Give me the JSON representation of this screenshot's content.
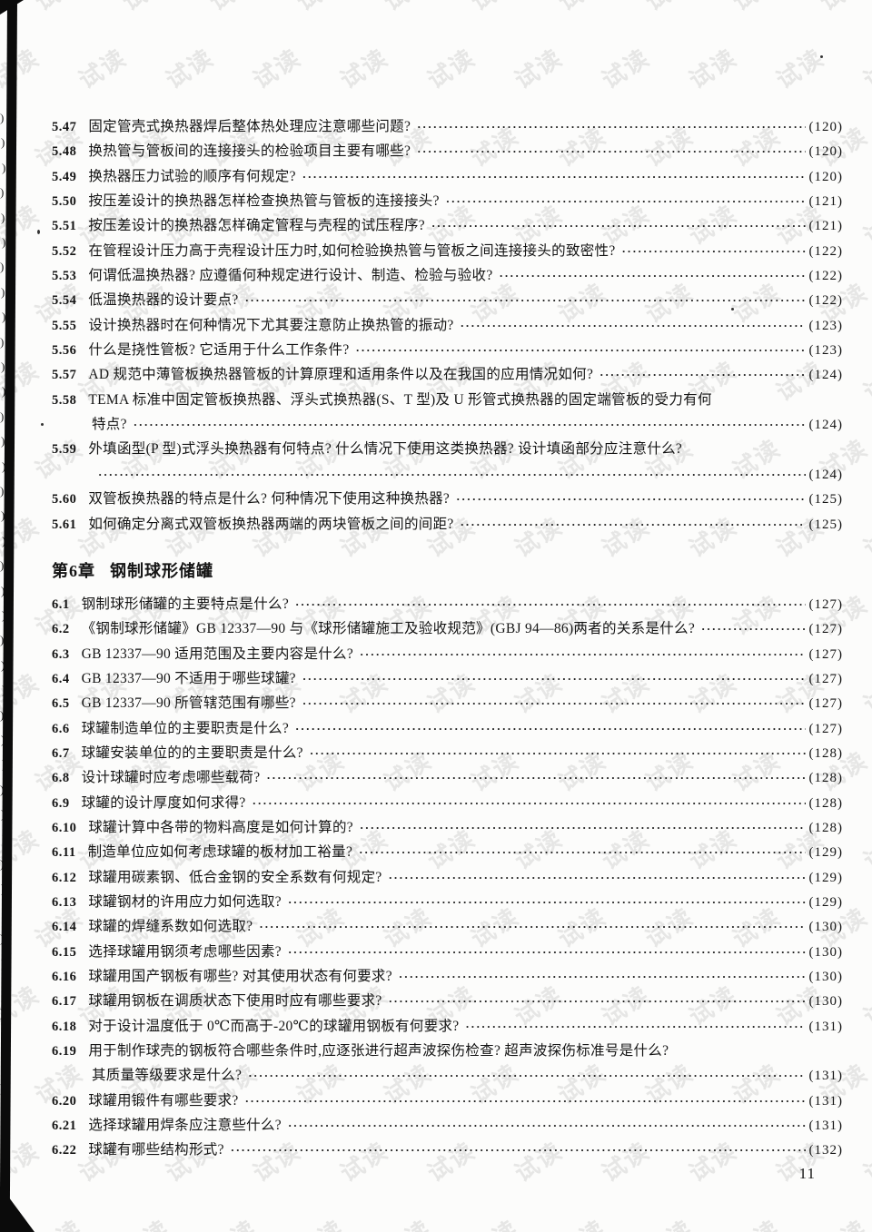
{
  "page": {
    "page_number": "11",
    "watermark_text": "试读",
    "margin_glyph": ")"
  },
  "toc": {
    "sections": [
      {
        "heading": null,
        "entries": [
          {
            "num": "5.47",
            "lines": [
              "固定管壳式换热器焊后整体热处理应注意哪些问题?"
            ],
            "page": "(120)"
          },
          {
            "num": "5.48",
            "lines": [
              "换热管与管板间的连接接头的检验项目主要有哪些?"
            ],
            "page": "(120)"
          },
          {
            "num": "5.49",
            "lines": [
              "换热器压力试验的顺序有何规定?"
            ],
            "page": "(120)"
          },
          {
            "num": "5.50",
            "lines": [
              "按压差设计的换热器怎样检查换热管与管板的连接接头?"
            ],
            "page": "(121)"
          },
          {
            "num": "5.51",
            "lines": [
              "按压差设计的换热器怎样确定管程与壳程的试压程序?"
            ],
            "page": "(121)"
          },
          {
            "num": "5.52",
            "lines": [
              "在管程设计压力高于壳程设计压力时,如何检验换热管与管板之间连接接头的致密性?"
            ],
            "page": "(122)"
          },
          {
            "num": "5.53",
            "lines": [
              "何谓低温换热器? 应遵循何种规定进行设计、制造、检验与验收?"
            ],
            "page": "(122)"
          },
          {
            "num": "5.54",
            "lines": [
              "低温换热器的设计要点?"
            ],
            "page": "(122)"
          },
          {
            "num": "5.55",
            "lines": [
              "设计换热器时在何种情况下尤其要注意防止换热管的振动?"
            ],
            "page": "(123)"
          },
          {
            "num": "5.56",
            "lines": [
              "什么是挠性管板? 它适用于什么工作条件?"
            ],
            "page": "(123)"
          },
          {
            "num": "5.57",
            "lines": [
              "AD 规范中薄管板换热器管板的计算原理和适用条件以及在我国的应用情况如何?"
            ],
            "page": "(124)"
          },
          {
            "num": "5.58",
            "lines": [
              "TEMA 标准中固定管板换热器、浮头式换热器(S、T 型)及 U 形管式换热器的固定端管板的受力有何",
              "特点?"
            ],
            "page": "(124)"
          },
          {
            "num": "5.59",
            "lines": [
              "外填函型(P 型)式浮头换热器有何特点? 什么情况下使用这类换热器? 设计填函部分应注意什么?",
              ""
            ],
            "page": "(124)"
          },
          {
            "num": "5.60",
            "lines": [
              "双管板换热器的特点是什么? 何种情况下使用这种换热器?"
            ],
            "page": "(125)"
          },
          {
            "num": "5.61",
            "lines": [
              "如何确定分离式双管板换热器两端的两块管板之间的间距?"
            ],
            "page": "(125)"
          }
        ]
      },
      {
        "heading": {
          "chapter": "第6章",
          "title": "钢制球形储罐"
        },
        "entries": [
          {
            "num": "6.1",
            "lines": [
              "钢制球形储罐的主要特点是什么?"
            ],
            "page": "(127)"
          },
          {
            "num": "6.2",
            "lines": [
              "《钢制球形储罐》GB 12337—90 与《球形储罐施工及验收规范》(GBJ 94—86)两者的关系是什么?"
            ],
            "page": "(127)"
          },
          {
            "num": "6.3",
            "lines": [
              "GB 12337—90 适用范围及主要内容是什么?"
            ],
            "page": "(127)"
          },
          {
            "num": "6.4",
            "lines": [
              "GB 12337—90 不适用于哪些球罐?"
            ],
            "page": "(127)"
          },
          {
            "num": "6.5",
            "lines": [
              "GB 12337—90 所管辖范围有哪些?"
            ],
            "page": "(127)"
          },
          {
            "num": "6.6",
            "lines": [
              "球罐制造单位的主要职责是什么?"
            ],
            "page": "(127)"
          },
          {
            "num": "6.7",
            "lines": [
              "球罐安装单位的的主要职责是什么?"
            ],
            "page": "(128)"
          },
          {
            "num": "6.8",
            "lines": [
              "设计球罐时应考虑哪些载荷?"
            ],
            "page": "(128)"
          },
          {
            "num": "6.9",
            "lines": [
              "球罐的设计厚度如何求得?"
            ],
            "page": "(128)"
          },
          {
            "num": "6.10",
            "lines": [
              "球罐计算中各带的物料高度是如何计算的?"
            ],
            "page": "(128)"
          },
          {
            "num": "6.11",
            "lines": [
              "制造单位应如何考虑球罐的板材加工裕量?"
            ],
            "page": "(129)"
          },
          {
            "num": "6.12",
            "lines": [
              "球罐用碳素钢、低合金钢的安全系数有何规定?"
            ],
            "page": "(129)"
          },
          {
            "num": "6.13",
            "lines": [
              "球罐钢材的许用应力如何选取?"
            ],
            "page": "(129)"
          },
          {
            "num": "6.14",
            "lines": [
              "球罐的焊缝系数如何选取?"
            ],
            "page": "(130)"
          },
          {
            "num": "6.15",
            "lines": [
              "选择球罐用钢须考虑哪些因素?"
            ],
            "page": "(130)"
          },
          {
            "num": "6.16",
            "lines": [
              "球罐用国产钢板有哪些? 对其使用状态有何要求?"
            ],
            "page": "(130)"
          },
          {
            "num": "6.17",
            "lines": [
              "球罐用钢板在调质状态下使用时应有哪些要求?"
            ],
            "page": "(130)"
          },
          {
            "num": "6.18",
            "lines": [
              "对于设计温度低于 0℃而高于-20℃的球罐用钢板有何要求?"
            ],
            "page": "(131)"
          },
          {
            "num": "6.19",
            "lines": [
              "用于制作球壳的钢板符合哪些条件时,应逐张进行超声波探伤检查? 超声波探伤标准号是什么?",
              "其质量等级要求是什么?"
            ],
            "page": "(131)"
          },
          {
            "num": "6.20",
            "lines": [
              "球罐用锻件有哪些要求?"
            ],
            "page": "(131)"
          },
          {
            "num": "6.21",
            "lines": [
              "选择球罐用焊条应注意些什么?"
            ],
            "page": "(131)"
          },
          {
            "num": "6.22",
            "lines": [
              "球罐有哪些结构形式?"
            ],
            "page": "(132)"
          }
        ]
      }
    ]
  }
}
